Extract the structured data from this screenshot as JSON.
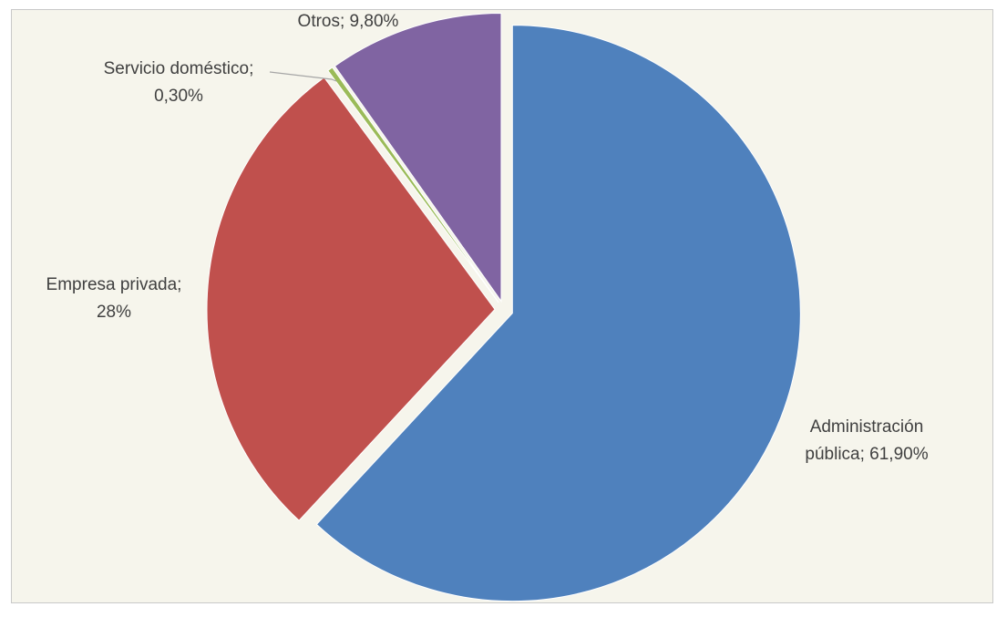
{
  "chart_data": {
    "type": "pie",
    "title": "",
    "slices": [
      {
        "name": "Administración pública",
        "value": 61.9,
        "color": "#4f81bd",
        "label_lines": [
          "Administración",
          "pública; 61,90%"
        ]
      },
      {
        "name": "Empresa privada",
        "value": 28,
        "color": "#c0504d",
        "label_lines": [
          "Empresa privada;",
          "28%"
        ]
      },
      {
        "name": "Servicio doméstico",
        "value": 0.3,
        "color": "#9bbb59",
        "label_lines": [
          "Servicio doméstico;",
          "0,30%"
        ]
      },
      {
        "name": "Otros",
        "value": 9.8,
        "color": "#8064a2",
        "label_lines": [
          "Otros; 9,80%"
        ]
      }
    ],
    "legend": "none",
    "background": "#f6f5ec",
    "exploded": true
  }
}
